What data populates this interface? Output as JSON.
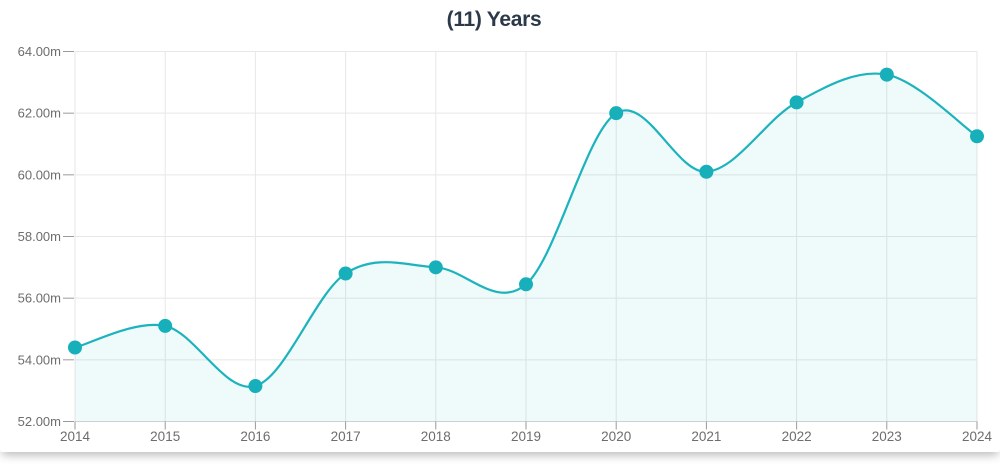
{
  "chart_data": {
    "type": "area",
    "title": "(11) Years",
    "x": [
      "2014",
      "2015",
      "2016",
      "2017",
      "2018",
      "2019",
      "2020",
      "2021",
      "2022",
      "2023",
      "2024"
    ],
    "series": [
      {
        "name": "Years",
        "values": [
          54.4,
          55.1,
          53.15,
          56.8,
          57.0,
          56.45,
          62.0,
          60.1,
          62.35,
          63.25,
          61.25
        ]
      }
    ],
    "xlabel": "",
    "ylabel": "",
    "ylim": [
      52,
      64
    ],
    "yticks": [
      52,
      54,
      56,
      58,
      60,
      62,
      64
    ],
    "ytick_labels": [
      "52.00m",
      "54.00m",
      "56.00m",
      "58.00m",
      "60.00m",
      "62.00m",
      "64.00m"
    ],
    "grid": "on",
    "legend": "none",
    "curve": "smooth-spline",
    "marker": "filled-circle",
    "colors": {
      "line": "#1cb3bd",
      "marker": "#17b0ba",
      "area_fill": "rgba(28,179,189,0.07)",
      "gridline": "#e7e7e7",
      "axis_line": "#d2d2d2",
      "tick": "#9a9a9a",
      "axis_label": "#6d6d6d",
      "title": "#2b3948"
    }
  }
}
